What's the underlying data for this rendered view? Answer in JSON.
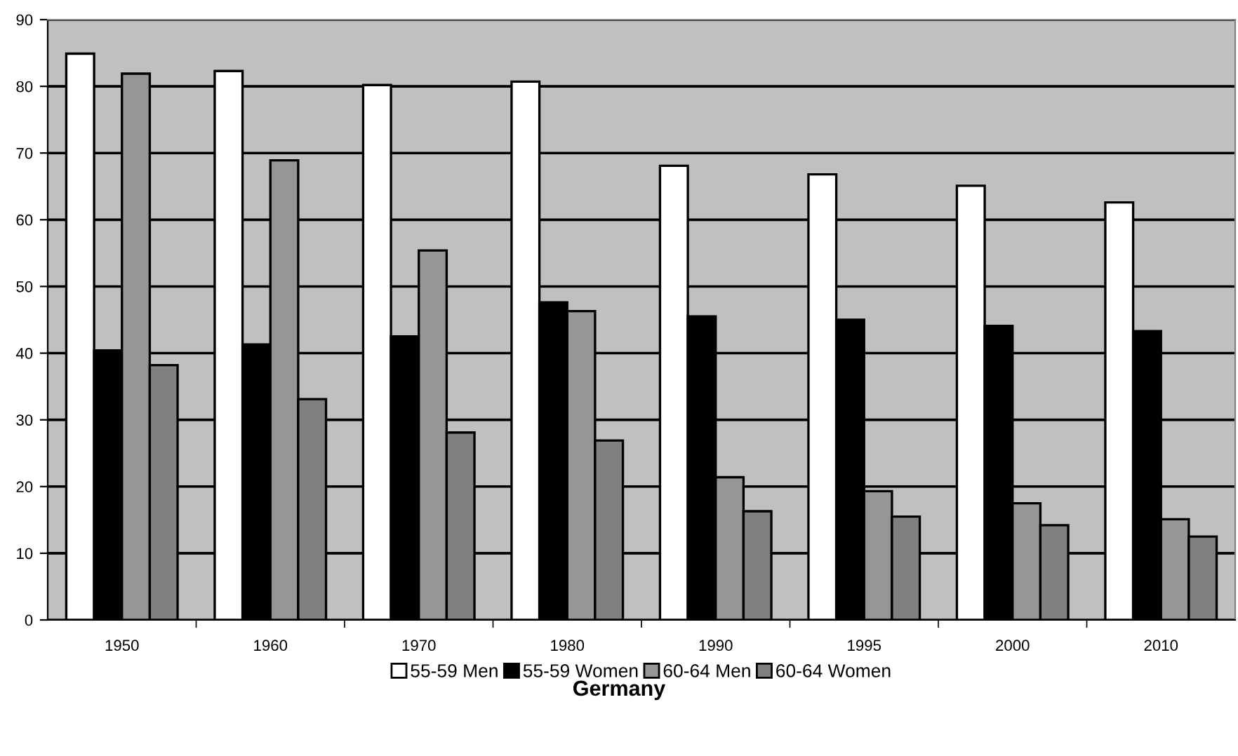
{
  "chart_data": {
    "type": "bar",
    "title": "Germany",
    "categories": [
      "1950",
      "1960",
      "1970",
      "1980",
      "1990",
      "1995",
      "2000",
      "2010"
    ],
    "series": [
      {
        "name": "55-59 Men",
        "color": "#ffffff",
        "values": [
          84.9,
          82.3,
          80.2,
          80.7,
          68.1,
          66.8,
          65.1,
          62.6
        ]
      },
      {
        "name": "55-59 Women",
        "color": "#000000",
        "values": [
          40.4,
          41.3,
          42.5,
          47.6,
          45.5,
          45.0,
          44.1,
          43.3
        ]
      },
      {
        "name": "60-64 Men",
        "color": "#969696",
        "values": [
          81.9,
          68.9,
          55.4,
          46.3,
          21.4,
          19.3,
          17.5,
          15.1
        ]
      },
      {
        "name": "60-64 Women",
        "color": "#808080",
        "values": [
          38.2,
          33.1,
          28.1,
          26.9,
          16.3,
          15.5,
          14.2,
          12.5
        ]
      }
    ],
    "ylim": [
      0,
      90
    ],
    "yticks": [
      0,
      10,
      20,
      30,
      40,
      50,
      60,
      70,
      80,
      90
    ],
    "grid": "y",
    "legend": "bottom"
  }
}
